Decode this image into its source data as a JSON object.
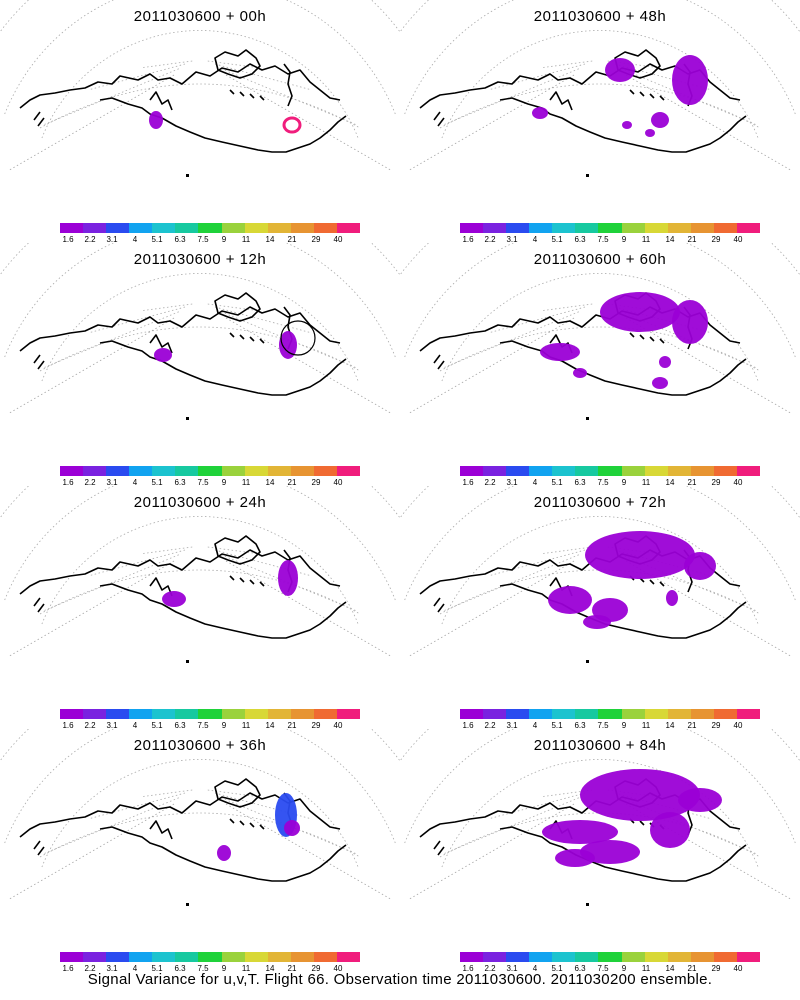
{
  "colorbar": {
    "labels": [
      "1.6",
      "2.2",
      "3.1",
      "4",
      "5.1",
      "6.3",
      "7.5",
      "9",
      "11",
      "14",
      "21",
      "29",
      "40"
    ],
    "colors": [
      "#9b00d6",
      "#7a22e0",
      "#2a4bf0",
      "#11a3f0",
      "#1cc3cf",
      "#17c9a0",
      "#1fd23a",
      "#9ad23c",
      "#d8d836",
      "#e2b536",
      "#e79432",
      "#f06a32",
      "#f01d7c"
    ]
  },
  "panels": [
    {
      "title": "2011030600 + 00h"
    },
    {
      "title": "2011030600 + 48h"
    },
    {
      "title": "2011030600 + 12h"
    },
    {
      "title": "2011030600 + 60h"
    },
    {
      "title": "2011030600 + 24h"
    },
    {
      "title": "2011030600 + 72h"
    },
    {
      "title": "2011030600 + 36h"
    },
    {
      "title": "2011030600 + 84h"
    }
  ],
  "footer": {
    "text": "Signal Variance for u,v,T. Flight 66. Observation time 2011030600. 2011030200 ensemble."
  },
  "map": {
    "projection": "polar stereographic",
    "grid": "on",
    "region": "North Pacific / North America"
  }
}
